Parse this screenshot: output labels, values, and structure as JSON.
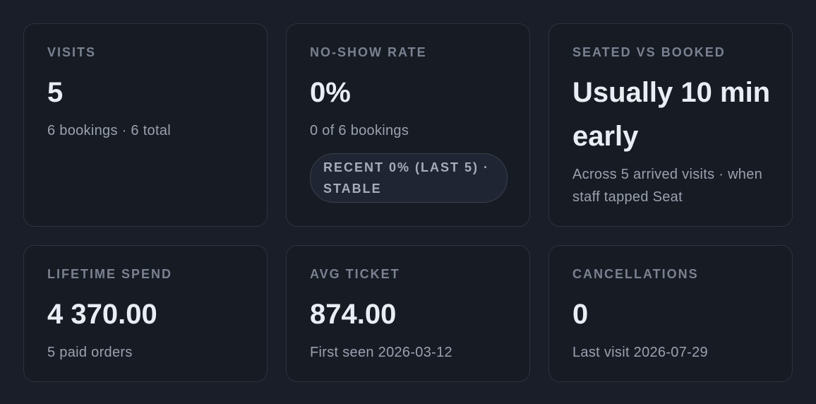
{
  "cards": [
    {
      "label": "VISITS",
      "value": "5",
      "note": "6 bookings · 6 total"
    },
    {
      "label": "NO-SHOW RATE",
      "value": "0%",
      "note": "0 of 6 bookings",
      "badge": "RECENT 0% (LAST 5) · STABLE"
    },
    {
      "label": "SEATED VS BOOKED",
      "value": "Usually 10 min early",
      "note": "Across 5 arrived visits · when staff tapped Seat"
    },
    {
      "label": "LIFETIME SPEND",
      "value": "4 370.00",
      "note": "5 paid orders"
    },
    {
      "label": "AVG TICKET",
      "value": "874.00",
      "note": "First seen 2026-03-12"
    },
    {
      "label": "CANCELLATIONS",
      "value": "0",
      "note": "Last visit 2026-07-29"
    }
  ]
}
